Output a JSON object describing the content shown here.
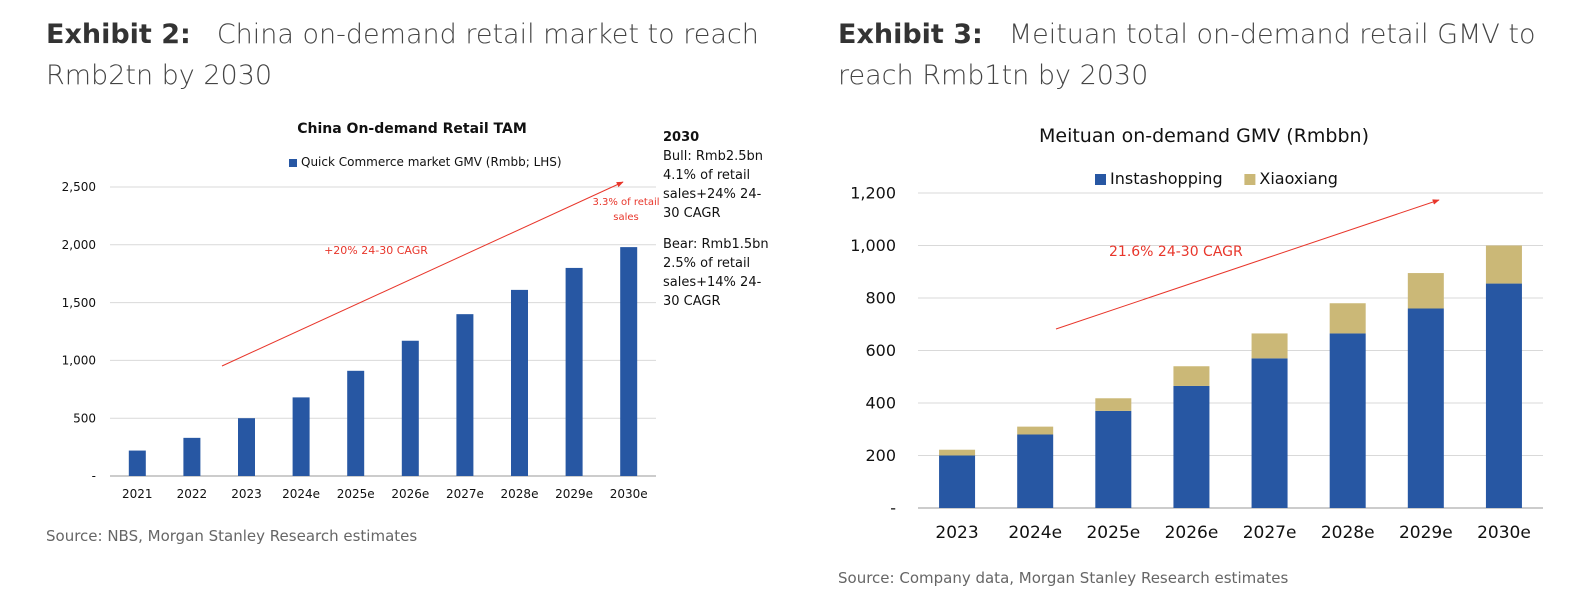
{
  "exhibit2": {
    "number": "Exhibit 2:",
    "title": "China on-demand retail market to reach Rmb2tn by 2030",
    "source": "Source: NBS, Morgan Stanley Research estimates",
    "callout": {
      "year": "2030",
      "bull": [
        "Bull: Rmb2.5bn",
        "4.1% of retail",
        "sales+24% 24-",
        "30 CAGR"
      ],
      "bear": [
        "Bear: Rmb1.5bn",
        "2.5% of retail",
        "sales+14% 24-",
        "30 CAGR"
      ]
    }
  },
  "exhibit3": {
    "number": "Exhibit 3:",
    "title": "Meituan total on-demand retail GMV to reach Rmb1tn by 2030",
    "source": "Source: Company data, Morgan Stanley Research estimates"
  },
  "chart_data": [
    {
      "type": "bar",
      "title": "China On-demand Retail TAM",
      "categories": [
        "2021",
        "2022",
        "2023",
        "2024e",
        "2025e",
        "2026e",
        "2027e",
        "2028e",
        "2029e",
        "2030e"
      ],
      "series": [
        {
          "name": "Quick Commerce market GMV (Rmbb; LHS)",
          "values": [
            220,
            330,
            500,
            680,
            910,
            1170,
            1400,
            1610,
            1800,
            1980
          ],
          "color": "#2757a3"
        }
      ],
      "ylim": [
        0,
        2500
      ],
      "yticks": [
        0,
        500,
        1000,
        1500,
        2000,
        2500
      ],
      "ytick_labels": [
        "-",
        "500",
        "1,000",
        "1,500",
        "2,000",
        "2,500"
      ],
      "grid": true,
      "legend": "top",
      "annotations": [
        {
          "text": "+20% 24-30 CAGR",
          "color": "#e8362b"
        },
        {
          "text": "3.3% of retail",
          "color": "#e8362b"
        },
        {
          "text": "sales",
          "color": "#e8362b"
        }
      ]
    },
    {
      "type": "bar",
      "stacked": true,
      "title": "Meituan on-demand GMV (Rmbbn)",
      "categories": [
        "2023",
        "2024e",
        "2025e",
        "2026e",
        "2027e",
        "2028e",
        "2029e",
        "2030e"
      ],
      "series": [
        {
          "name": "Instashopping",
          "values": [
            200,
            280,
            370,
            465,
            570,
            665,
            760,
            855
          ],
          "color": "#2757a3"
        },
        {
          "name": "Xiaoxiang",
          "values": [
            22,
            30,
            48,
            75,
            95,
            115,
            135,
            145
          ],
          "color": "#cbb877"
        }
      ],
      "ylim": [
        0,
        1200
      ],
      "yticks": [
        0,
        200,
        400,
        600,
        800,
        1000,
        1200
      ],
      "ytick_labels": [
        "-",
        "200",
        "400",
        "600",
        "800",
        "1,000",
        "1,200"
      ],
      "grid": true,
      "legend": "top",
      "annotations": [
        {
          "text": "21.6% 24-30 CAGR",
          "color": "#e8362b"
        }
      ]
    }
  ]
}
